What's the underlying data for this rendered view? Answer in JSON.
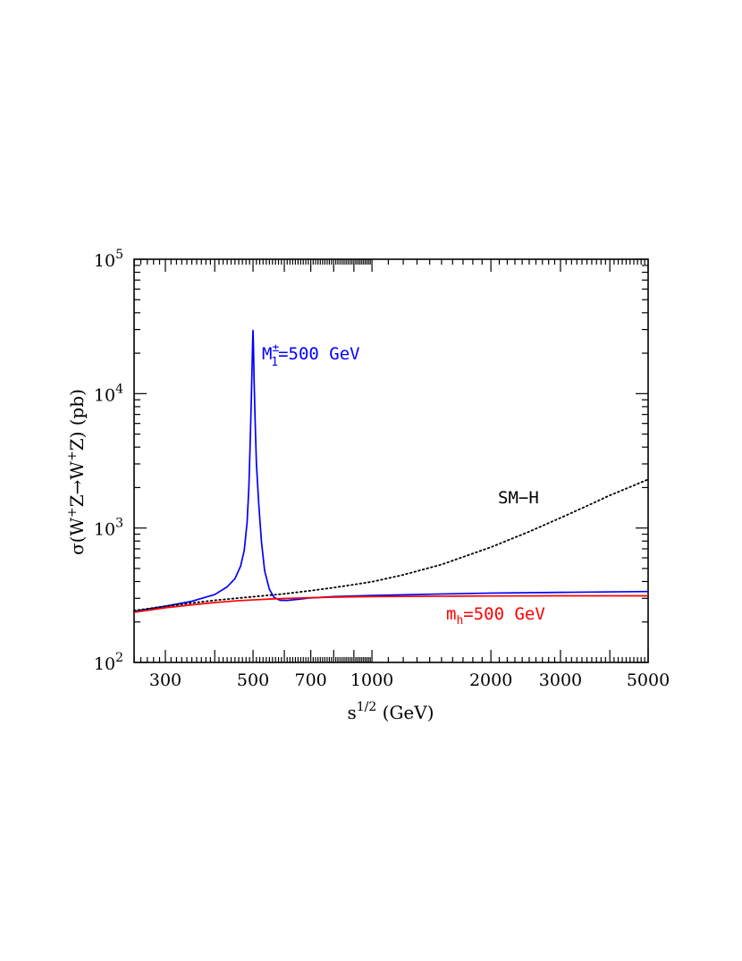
{
  "chart_data": {
    "type": "line",
    "title": "",
    "xlabel": {
      "base": "s",
      "sup": "1/2",
      "rest": " (GeV)"
    },
    "ylabel": {
      "pre": "σ(W",
      "sup1": "+",
      "mid1": "Z→W",
      "sup2": "+",
      "rest": "Z) (pb)"
    },
    "x_scale": "log",
    "y_scale": "log",
    "xlim": [
      250,
      5000
    ],
    "ylim": [
      100,
      100000
    ],
    "x_tick_labels": [
      "300",
      "500",
      "700",
      "1000",
      "2000",
      "3000",
      "5000"
    ],
    "x_tick_values": [
      300,
      500,
      700,
      1000,
      2000,
      3000,
      5000
    ],
    "y_tick_labels": [
      {
        "base": "10",
        "exp": "2",
        "value": 100
      },
      {
        "base": "10",
        "exp": "3",
        "value": 1000
      },
      {
        "base": "10",
        "exp": "4",
        "value": 10000
      },
      {
        "base": "10",
        "exp": "5",
        "value": 100000
      }
    ],
    "grid": false,
    "series": [
      {
        "label_parts": {
          "pre": "M",
          "sup": "±",
          "sub": "1",
          "post": "=500 GeV"
        },
        "color": "#0000ff",
        "style": "solid",
        "points": [
          [
            250,
            240
          ],
          [
            300,
            262
          ],
          [
            350,
            285
          ],
          [
            400,
            320
          ],
          [
            430,
            365
          ],
          [
            450,
            420
          ],
          [
            465,
            520
          ],
          [
            475,
            680
          ],
          [
            483,
            1100
          ],
          [
            488,
            2000
          ],
          [
            492,
            4500
          ],
          [
            495,
            9000
          ],
          [
            497,
            15000
          ],
          [
            498.5,
            22000
          ],
          [
            499.5,
            28000
          ],
          [
            500,
            29500
          ],
          [
            500.5,
            27000
          ],
          [
            501.5,
            21000
          ],
          [
            503,
            13000
          ],
          [
            506,
            6500
          ],
          [
            510,
            3000
          ],
          [
            517,
            1500
          ],
          [
            525,
            800
          ],
          [
            535,
            480
          ],
          [
            550,
            350
          ],
          [
            565,
            305
          ],
          [
            585,
            290
          ],
          [
            610,
            289
          ],
          [
            650,
            295
          ],
          [
            700,
            302
          ],
          [
            800,
            309
          ],
          [
            1000,
            315
          ],
          [
            1500,
            323
          ],
          [
            2000,
            328
          ],
          [
            3000,
            332
          ],
          [
            5000,
            337
          ]
        ]
      },
      {
        "label_parts": {
          "pre": "m",
          "sub": "h",
          "post": "=500 GeV"
        },
        "color": "#ff0000",
        "style": "solid",
        "points": [
          [
            250,
            236
          ],
          [
            300,
            255
          ],
          [
            350,
            268
          ],
          [
            400,
            279
          ],
          [
            450,
            287
          ],
          [
            500,
            292
          ],
          [
            550,
            296
          ],
          [
            600,
            299
          ],
          [
            700,
            303
          ],
          [
            800,
            306
          ],
          [
            1000,
            309
          ],
          [
            1500,
            311
          ],
          [
            2000,
            312
          ],
          [
            3000,
            313
          ],
          [
            5000,
            313
          ]
        ]
      },
      {
        "label_parts": {
          "pre": "SM−H",
          "post": ""
        },
        "color": "#000000",
        "style": "dotted",
        "points": [
          [
            250,
            243
          ],
          [
            300,
            262
          ],
          [
            400,
            290
          ],
          [
            500,
            308
          ],
          [
            600,
            324
          ],
          [
            700,
            342
          ],
          [
            800,
            360
          ],
          [
            1000,
            398
          ],
          [
            1200,
            448
          ],
          [
            1500,
            535
          ],
          [
            2000,
            720
          ],
          [
            2500,
            940
          ],
          [
            3000,
            1190
          ],
          [
            3500,
            1460
          ],
          [
            4000,
            1750
          ],
          [
            4500,
            2020
          ],
          [
            5000,
            2300
          ]
        ]
      }
    ]
  }
}
